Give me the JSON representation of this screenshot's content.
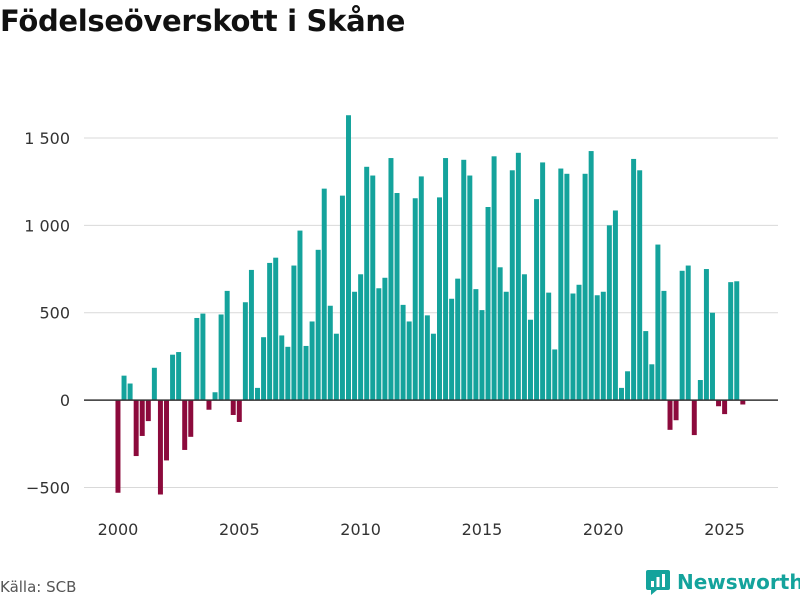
{
  "title": "Födelseöverskott i Skåne",
  "source": "Källa: SCB",
  "brand": {
    "name": "Newsworthy"
  },
  "colors": {
    "positive": "#14a39c",
    "negative": "#8c0a3c",
    "grid": "#d9d9d9",
    "zero": "#333333"
  },
  "chart_data": {
    "type": "bar",
    "title": "Födelseöverskott i Skåne",
    "xlabel": "",
    "ylabel": "",
    "ylim": [
      -560,
      1700
    ],
    "xlim": [
      1998.6,
      2027.2
    ],
    "yticks": [
      -500,
      0,
      500,
      1000,
      1500
    ],
    "ytick_labels": [
      "−500",
      "0",
      "500",
      "1 000",
      "1 500"
    ],
    "xticks": [
      2000,
      2005,
      2010,
      2015,
      2020,
      2025
    ],
    "xtick_labels": [
      "2000",
      "2005",
      "2010",
      "2015",
      "2020",
      "2025"
    ],
    "start": 2000,
    "step": 0.25,
    "values": [
      -530,
      140,
      95,
      -320,
      -205,
      -120,
      185,
      -540,
      -345,
      260,
      275,
      -285,
      -210,
      470,
      495,
      -55,
      45,
      490,
      625,
      -85,
      -125,
      560,
      745,
      70,
      360,
      785,
      815,
      370,
      305,
      770,
      970,
      310,
      450,
      860,
      1210,
      540,
      380,
      1170,
      1630,
      620,
      720,
      1335,
      1285,
      640,
      700,
      1385,
      1185,
      545,
      450,
      1155,
      1280,
      485,
      380,
      1160,
      1385,
      580,
      695,
      1375,
      1285,
      635,
      515,
      1105,
      1395,
      760,
      620,
      1315,
      1415,
      720,
      460,
      1150,
      1360,
      615,
      290,
      1325,
      1295,
      610,
      660,
      1295,
      1425,
      600,
      620,
      1000,
      1085,
      70,
      165,
      1380,
      1315,
      395,
      205,
      890,
      625,
      -170,
      -115,
      740,
      770,
      -200,
      115,
      750,
      500,
      -35,
      -80,
      675,
      680,
      -25
    ]
  }
}
